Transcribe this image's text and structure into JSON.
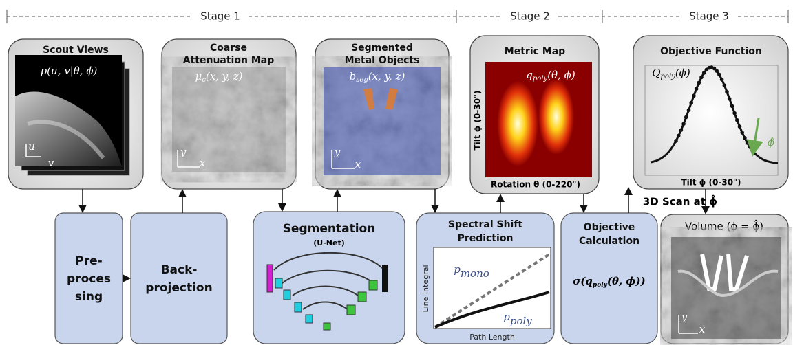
{
  "stages": [
    "Stage 1",
    "Stage 2",
    "Stage 3"
  ],
  "panels": [
    {
      "title": [
        "Scout Views"
      ],
      "formula": {
        "base": "p(u, v|θ, ϕ)",
        "sub": "",
        "rest": ""
      },
      "axes": [
        "u",
        "v"
      ]
    },
    {
      "title": [
        "Coarse",
        "Attenuation Map"
      ],
      "formula": {
        "base": "μ",
        "sub": "c",
        "rest": "(x, y, z)"
      },
      "axes": [
        "y",
        "x"
      ]
    },
    {
      "title": [
        "Segmented",
        "Metal Objects"
      ],
      "formula": {
        "base": "b",
        "sub": "seg",
        "rest": "(x, y, z)"
      },
      "axes": [
        "y",
        "x"
      ]
    },
    {
      "title": [
        "Metric Map"
      ],
      "formula": {
        "base": "q",
        "sub": "poly",
        "rest": "(θ, ϕ)"
      },
      "y_label": "Tilt  ϕ  (0-30°)",
      "x_label": "Rotation  θ  (0-220°)"
    },
    {
      "title": [
        "Objective Function"
      ],
      "formula": {
        "base": "Q",
        "sub": "poly",
        "rest": "(ϕ)"
      },
      "marker": "ϕ̂",
      "x_label": "Tilt  ϕ  (0-30°)"
    }
  ],
  "scan_label": "3D Scan at ϕ̂",
  "modules": {
    "preprocessing": [
      "Pre-",
      "proces",
      "sing"
    ],
    "backprojection": [
      "Back-",
      "projection"
    ],
    "segmentation": {
      "title": "Segmentation",
      "subtitle": "(U-Net)"
    },
    "spectral": {
      "title": [
        "Spectral Shift",
        "Prediction"
      ],
      "y_label": "Line Integral",
      "x_label": "Path Length",
      "mono": {
        "base": "p",
        "sub": "mono"
      },
      "poly": {
        "base": "p",
        "sub": "poly"
      }
    },
    "objective": {
      "title": [
        "Objective",
        "Calculation"
      ],
      "formula": {
        "base": "σ(q",
        "sub": "poly",
        "rest": "(θ, ϕ))"
      }
    },
    "volume": {
      "title": "Volume (ϕ = ϕ̂)",
      "axes": [
        "y",
        "x"
      ]
    }
  }
}
